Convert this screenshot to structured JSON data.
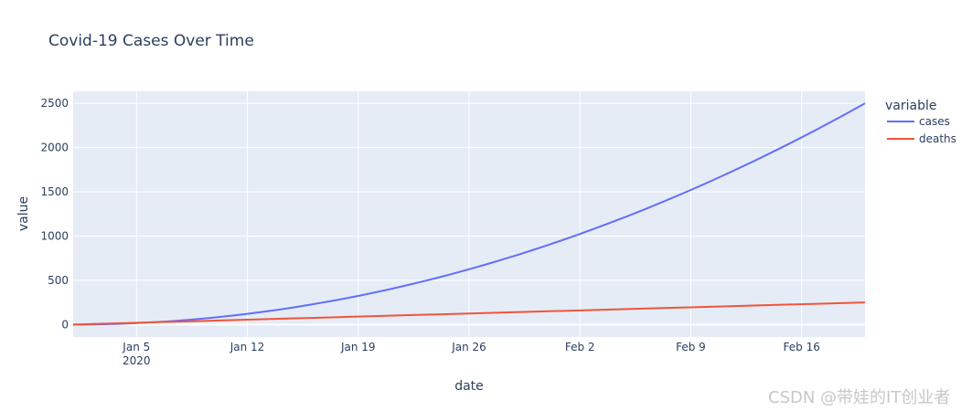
{
  "chart_data": {
    "type": "line",
    "title": "Covid-19 Cases Over Time",
    "xlabel": "date",
    "ylabel": "value",
    "legend_title": "variable",
    "legend_position": "right",
    "grid": true,
    "ylim": [
      -141,
      2636
    ],
    "xlim": [
      "2020-01-01",
      "2020-02-20"
    ],
    "yticks": [
      0,
      500,
      1000,
      1500,
      2000,
      2500
    ],
    "xticks": [
      {
        "date": "2020-01-05",
        "label": "Jan 5",
        "sublabel": "2020"
      },
      {
        "date": "2020-01-12",
        "label": "Jan 12"
      },
      {
        "date": "2020-01-19",
        "label": "Jan 19"
      },
      {
        "date": "2020-01-26",
        "label": "Jan 26"
      },
      {
        "date": "2020-02-02",
        "label": "Feb 2"
      },
      {
        "date": "2020-02-09",
        "label": "Feb 9"
      },
      {
        "date": "2020-02-16",
        "label": "Feb 16"
      }
    ],
    "x": [
      "2020-01-01",
      "2020-01-02",
      "2020-01-03",
      "2020-01-04",
      "2020-01-05",
      "2020-01-06",
      "2020-01-07",
      "2020-01-08",
      "2020-01-09",
      "2020-01-10",
      "2020-01-11",
      "2020-01-12",
      "2020-01-13",
      "2020-01-14",
      "2020-01-15",
      "2020-01-16",
      "2020-01-17",
      "2020-01-18",
      "2020-01-19",
      "2020-01-20",
      "2020-01-21",
      "2020-01-22",
      "2020-01-23",
      "2020-01-24",
      "2020-01-25",
      "2020-01-26",
      "2020-01-27",
      "2020-01-28",
      "2020-01-29",
      "2020-01-30",
      "2020-01-31",
      "2020-02-01",
      "2020-02-02",
      "2020-02-03",
      "2020-02-04",
      "2020-02-05",
      "2020-02-06",
      "2020-02-07",
      "2020-02-08",
      "2020-02-09",
      "2020-02-10",
      "2020-02-11",
      "2020-02-12",
      "2020-02-13",
      "2020-02-14",
      "2020-02-15",
      "2020-02-16",
      "2020-02-17",
      "2020-02-18",
      "2020-02-19",
      "2020-02-20"
    ],
    "series": [
      {
        "name": "cases",
        "color": "#636efa",
        "values": [
          0,
          1,
          4,
          9,
          16,
          25,
          36,
          49,
          64,
          81,
          100,
          121,
          144,
          169,
          196,
          225,
          256,
          289,
          324,
          361,
          400,
          441,
          484,
          529,
          576,
          625,
          676,
          729,
          784,
          841,
          900,
          961,
          1024,
          1089,
          1156,
          1225,
          1296,
          1369,
          1444,
          1521,
          1600,
          1681,
          1764,
          1849,
          1936,
          2025,
          2116,
          2209,
          2304,
          2401,
          2500
        ]
      },
      {
        "name": "deaths",
        "color": "#ef553b",
        "values": [
          0,
          5,
          10,
          15,
          20,
          25,
          30,
          35,
          40,
          45,
          50,
          55,
          60,
          65,
          70,
          75,
          80,
          85,
          90,
          95,
          100,
          105,
          110,
          115,
          120,
          125,
          130,
          135,
          140,
          145,
          150,
          155,
          160,
          165,
          170,
          175,
          180,
          185,
          190,
          195,
          200,
          205,
          210,
          215,
          220,
          225,
          230,
          235,
          240,
          245,
          250
        ]
      }
    ]
  },
  "watermark": "CSDN @带娃的IT创业者"
}
